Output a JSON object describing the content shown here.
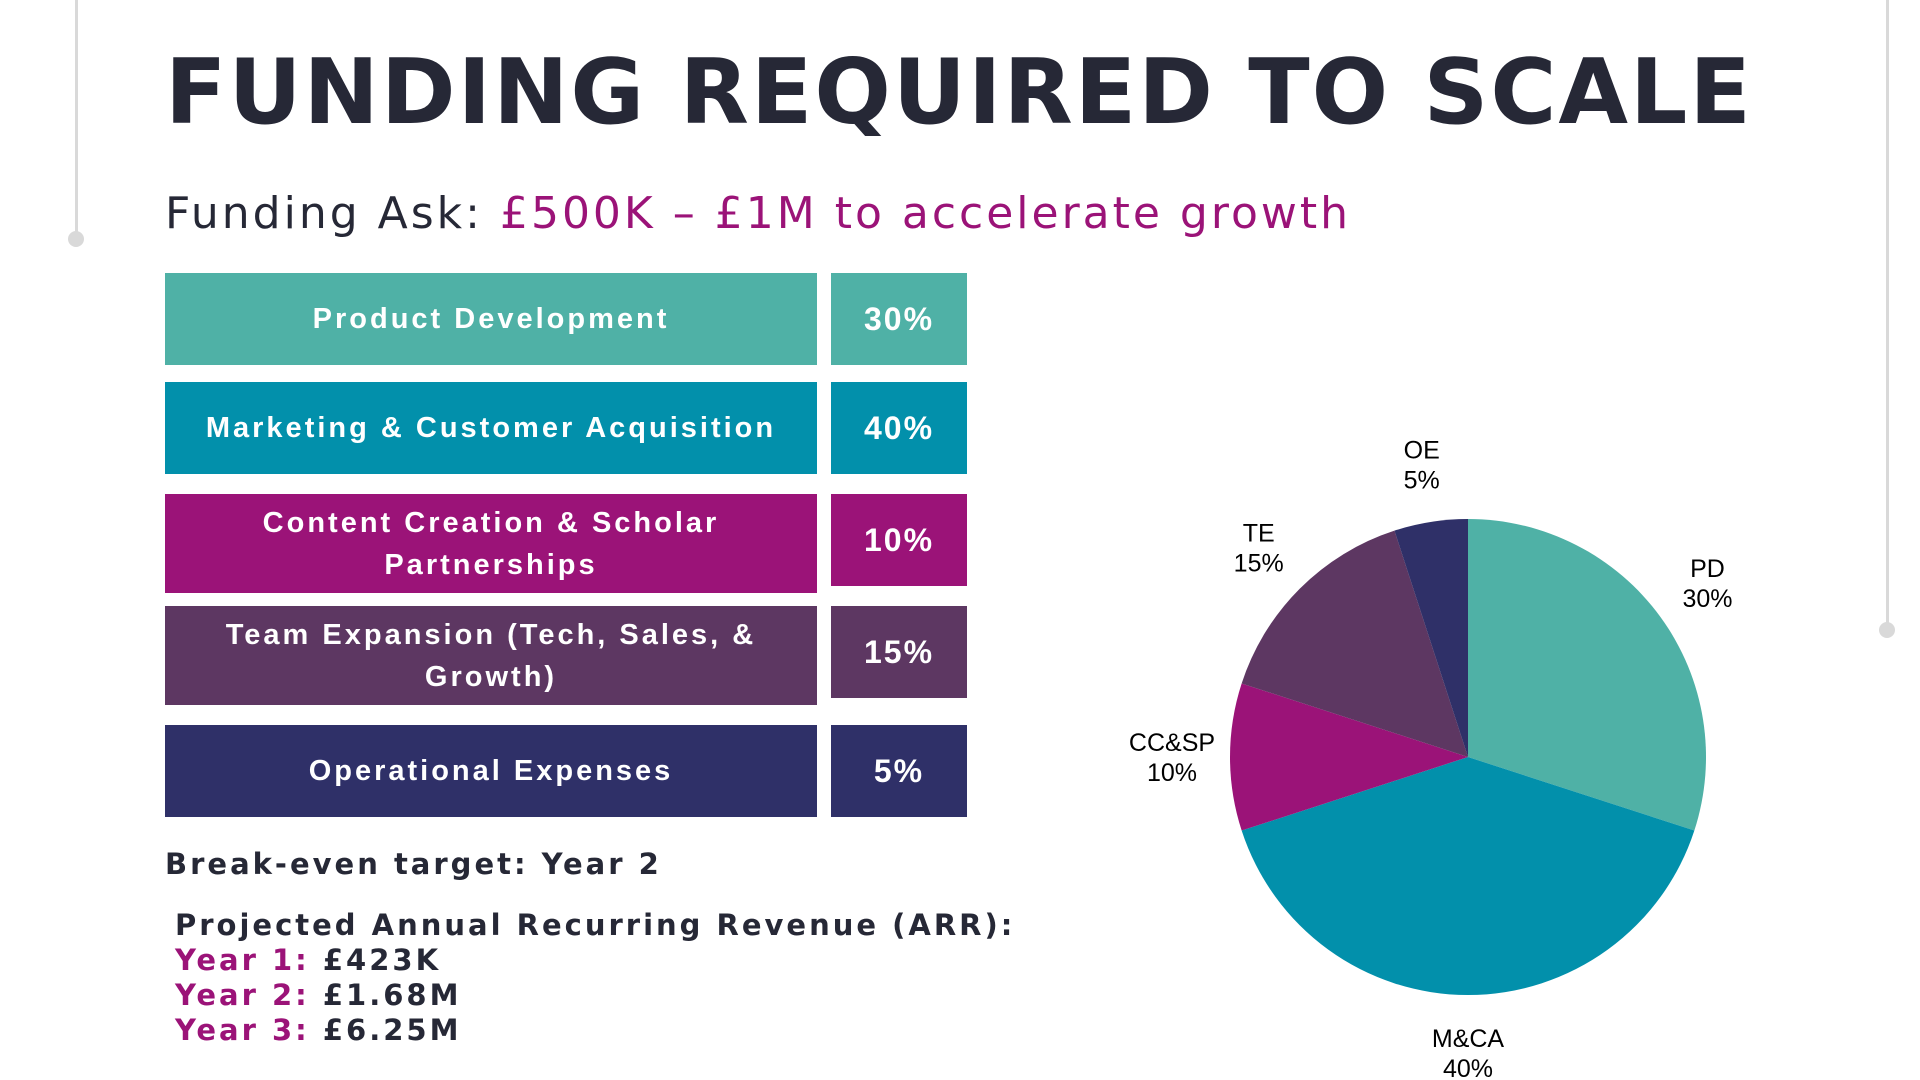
{
  "header": {
    "title": "FUNDING REQUIRED TO SCALE",
    "subtitle_prefix": "Funding Ask: ",
    "subtitle_accent": "£500K – £1M to accelerate growth"
  },
  "allocation_rows": [
    {
      "label": "Product Development",
      "percent": "30%",
      "color": "#4fb1a6"
    },
    {
      "label": "Marketing & Customer Acquisition",
      "percent": "40%",
      "color": "#0290ab"
    },
    {
      "label": "Content Creation & Scholar Partnerships",
      "percent": "10%",
      "color": "#9b1378"
    },
    {
      "label": "Team Expansion (Tech, Sales, & Growth)",
      "percent": "15%",
      "color": "#5d3762"
    },
    {
      "label": "Operational Expenses",
      "percent": "5%",
      "color": "#2f3068"
    }
  ],
  "breakeven": "Break-even target: Year 2",
  "arr": {
    "heading": "Projected Annual Recurring Revenue (ARR):",
    "years": [
      {
        "label": "Year 1:",
        "value": "£423K"
      },
      {
        "label": "Year 2:",
        "value": "£1.68M"
      },
      {
        "label": "Year 3:",
        "value": "£6.25M"
      }
    ]
  },
  "chart_data": {
    "type": "pie",
    "categories": [
      "PD",
      "M&CA",
      "CC&SP",
      "TE",
      "OE"
    ],
    "values": [
      30,
      40,
      10,
      15,
      5
    ],
    "value_labels": [
      "30%",
      "40%",
      "10%",
      "15%",
      "5%"
    ],
    "colors": [
      "#4fb1a6",
      "#0290ab",
      "#9b1378",
      "#5d3762",
      "#2f3068"
    ],
    "start": "12 o'clock",
    "direction": "clockwise"
  }
}
